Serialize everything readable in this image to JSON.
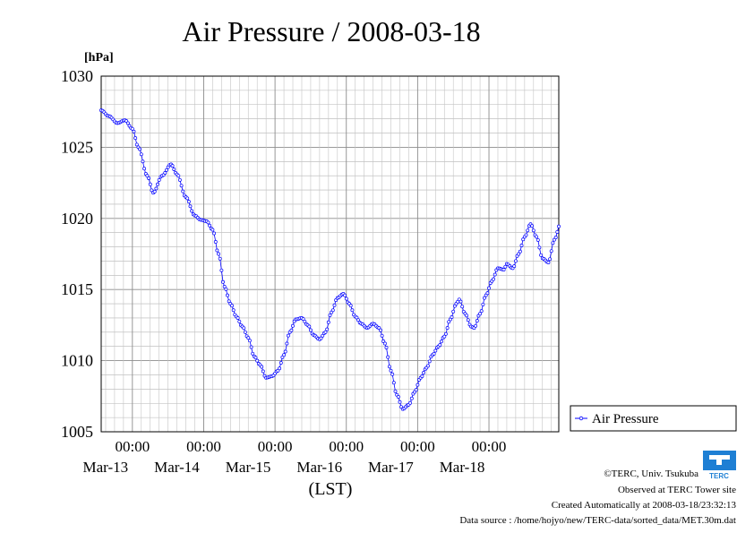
{
  "chart_data": {
    "type": "line",
    "title": "Air Pressure / 2008-03-18",
    "ylabel": "[hPa]",
    "xlabel": "(LST)",
    "ylim": [
      1005,
      1030
    ],
    "yticks": [
      "1005",
      "1010",
      "1015",
      "1020",
      "1025",
      "1030"
    ],
    "xlim": [
      "2008-03-12 13:30",
      "2008-03-18 23:30"
    ],
    "day_ticks": [
      {
        "time": "00:00",
        "date": "Mar-13"
      },
      {
        "time": "00:00",
        "date": "Mar-14"
      },
      {
        "time": "00:00",
        "date": "Mar-15"
      },
      {
        "time": "00:00",
        "date": "Mar-16"
      },
      {
        "time": "00:00",
        "date": "Mar-17"
      },
      {
        "time": "00:00",
        "date": "Mar-18"
      }
    ],
    "grid": true,
    "legend_position": "right",
    "series": [
      {
        "name": "Air Pressure",
        "color": "#0000ff",
        "marker": "circle",
        "points": [
          [
            "2008-03-12 13:30",
            1027.6
          ],
          [
            "2008-03-12 16:00",
            1027.2
          ],
          [
            "2008-03-12 19:00",
            1026.7
          ],
          [
            "2008-03-12 21:30",
            1026.9
          ],
          [
            "2008-03-13 00:00",
            1026.3
          ],
          [
            "2008-03-13 02:00",
            1025.0
          ],
          [
            "2008-03-13 05:00",
            1023.0
          ],
          [
            "2008-03-13 07:00",
            1021.8
          ],
          [
            "2008-03-13 10:00",
            1023.0
          ],
          [
            "2008-03-13 13:00",
            1023.8
          ],
          [
            "2008-03-13 15:00",
            1023.1
          ],
          [
            "2008-03-13 18:00",
            1021.5
          ],
          [
            "2008-03-13 21:00",
            1020.2
          ],
          [
            "2008-03-13 23:00",
            1019.9
          ],
          [
            "2008-03-14 01:00",
            1019.8
          ],
          [
            "2008-03-14 03:00",
            1019.2
          ],
          [
            "2008-03-14 05:00",
            1017.5
          ],
          [
            "2008-03-14 07:00",
            1015.2
          ],
          [
            "2008-03-14 09:00",
            1014.0
          ],
          [
            "2008-03-14 11:00",
            1013.1
          ],
          [
            "2008-03-14 13:00",
            1012.4
          ],
          [
            "2008-03-14 15:00",
            1011.6
          ],
          [
            "2008-03-14 17:00",
            1010.3
          ],
          [
            "2008-03-14 19:00",
            1009.7
          ],
          [
            "2008-03-14 21:00",
            1008.8
          ],
          [
            "2008-03-14 23:00",
            1008.9
          ],
          [
            "2008-03-15 01:00",
            1009.3
          ],
          [
            "2008-03-15 03:00",
            1010.4
          ],
          [
            "2008-03-15 05:00",
            1012.0
          ],
          [
            "2008-03-15 07:00",
            1012.9
          ],
          [
            "2008-03-15 09:00",
            1013.0
          ],
          [
            "2008-03-15 11:00",
            1012.5
          ],
          [
            "2008-03-15 13:00",
            1011.8
          ],
          [
            "2008-03-15 15:00",
            1011.5
          ],
          [
            "2008-03-15 17:00",
            1012.0
          ],
          [
            "2008-03-15 19:00",
            1013.4
          ],
          [
            "2008-03-15 21:00",
            1014.4
          ],
          [
            "2008-03-15 23:00",
            1014.7
          ],
          [
            "2008-03-16 01:00",
            1014.0
          ],
          [
            "2008-03-16 03:00",
            1013.1
          ],
          [
            "2008-03-16 05:00",
            1012.6
          ],
          [
            "2008-03-16 07:00",
            1012.3
          ],
          [
            "2008-03-16 09:00",
            1012.6
          ],
          [
            "2008-03-16 11:00",
            1012.3
          ],
          [
            "2008-03-16 13:00",
            1011.2
          ],
          [
            "2008-03-16 15:00",
            1009.3
          ],
          [
            "2008-03-16 17:00",
            1007.6
          ],
          [
            "2008-03-16 19:00",
            1006.6
          ],
          [
            "2008-03-16 21:00",
            1006.9
          ],
          [
            "2008-03-16 23:00",
            1007.8
          ],
          [
            "2008-03-17 01:00",
            1008.8
          ],
          [
            "2008-03-17 03:00",
            1009.5
          ],
          [
            "2008-03-17 05:00",
            1010.4
          ],
          [
            "2008-03-17 07:00",
            1011.0
          ],
          [
            "2008-03-17 09:00",
            1011.7
          ],
          [
            "2008-03-17 11:00",
            1012.9
          ],
          [
            "2008-03-17 13:00",
            1014.0
          ],
          [
            "2008-03-17 14:00",
            1014.3
          ],
          [
            "2008-03-17 16:00",
            1013.3
          ],
          [
            "2008-03-17 18:00",
            1012.4
          ],
          [
            "2008-03-17 19:00",
            1012.3
          ],
          [
            "2008-03-17 21:00",
            1013.3
          ],
          [
            "2008-03-17 23:00",
            1014.6
          ],
          [
            "2008-03-18 01:00",
            1015.6
          ],
          [
            "2008-03-18 03:00",
            1016.5
          ],
          [
            "2008-03-18 05:00",
            1016.4
          ],
          [
            "2008-03-18 06:00",
            1016.8
          ],
          [
            "2008-03-18 08:00",
            1016.5
          ],
          [
            "2008-03-18 10:00",
            1017.5
          ],
          [
            "2008-03-18 12:00",
            1018.7
          ],
          [
            "2008-03-18 14:00",
            1019.6
          ],
          [
            "2008-03-18 16:00",
            1018.7
          ],
          [
            "2008-03-18 18:00",
            1017.2
          ],
          [
            "2008-03-18 20:00",
            1016.9
          ],
          [
            "2008-03-18 22:00",
            1018.5
          ],
          [
            "2008-03-19 00:00",
            1019.6
          ],
          [
            "2008-03-19 02:00",
            1019.9
          ]
        ]
      }
    ]
  },
  "credits": {
    "copyright": "©TERC, Univ. Tsukuba",
    "observed": "Observed at TERC Tower site",
    "created": "Created Automatically at 2008-03-18/23:32:13",
    "source": "Data source : /home/hojyo/new/TERC-data/sorted_data/MET.30m.dat"
  },
  "logo": {
    "text": "TERC",
    "color": "#1e7fd4"
  }
}
